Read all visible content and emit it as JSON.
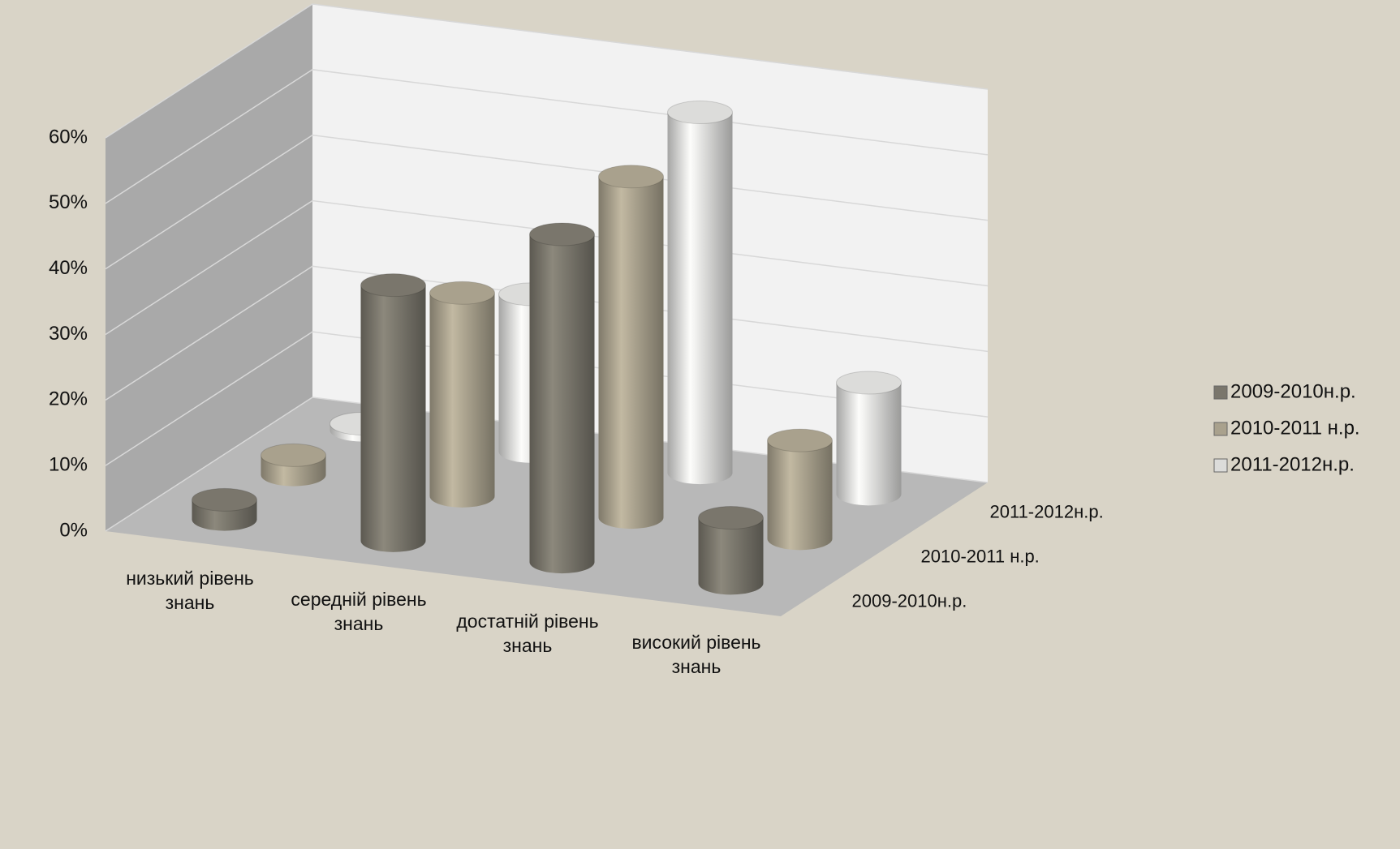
{
  "chart_data": {
    "type": "bar3d",
    "categories": [
      "низький рівень знань",
      "середній рівень знань",
      "достатній рівень знань",
      "високий рівень знань"
    ],
    "series": [
      {
        "name": "2009-2010н.р.",
        "color": "#7a766c",
        "values": [
          3,
          39,
          50,
          10
        ]
      },
      {
        "name": "2010-2011 н.р.",
        "color": "#a9a18d",
        "values": [
          3,
          31,
          52,
          15
        ]
      },
      {
        "name": "2011-2012н.р.",
        "color": "#dcdcda",
        "values": [
          1,
          24,
          55,
          17
        ]
      }
    ],
    "ylim": [
      0,
      60
    ],
    "yticks": [
      {
        "value": 0,
        "label": "0%"
      },
      {
        "value": 10,
        "label": "10%"
      },
      {
        "value": 20,
        "label": "20%"
      },
      {
        "value": 30,
        "label": "30%"
      },
      {
        "value": 40,
        "label": "40%"
      },
      {
        "value": 50,
        "label": "50%"
      },
      {
        "value": 60,
        "label": "60%"
      }
    ],
    "grid": true,
    "legend": "right"
  }
}
